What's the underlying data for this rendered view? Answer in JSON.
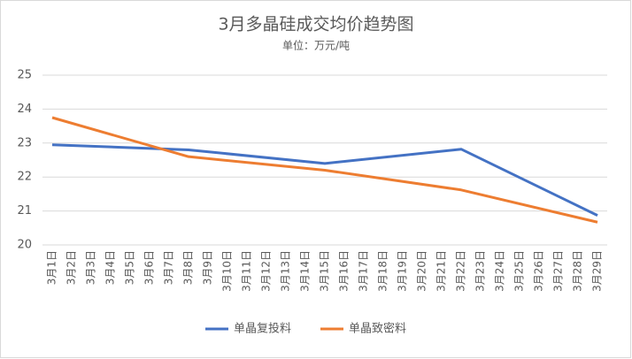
{
  "chart_data": {
    "type": "line",
    "title": "3月多晶硅成交均价趋势图",
    "subtitle": "单位：万元/吨",
    "categories": [
      "3月1日",
      "3月2日",
      "3月3日",
      "3月4日",
      "3月5日",
      "3月6日",
      "3月7日",
      "3月8日",
      "3月9日",
      "3月10日",
      "3月11日",
      "3月12日",
      "3月13日",
      "3月14日",
      "3月15日",
      "3月16日",
      "3月17日",
      "3月18日",
      "3月19日",
      "3月20日",
      "3月21日",
      "3月22日",
      "3月23日",
      "3月24日",
      "3月25日",
      "3月26日",
      "3月27日",
      "3月28日",
      "3月29日"
    ],
    "series": [
      {
        "name": "单晶复投料",
        "color": "#4472c4",
        "values": [
          22.95,
          null,
          null,
          null,
          null,
          null,
          null,
          22.8,
          null,
          null,
          null,
          null,
          null,
          null,
          22.4,
          null,
          null,
          null,
          null,
          null,
          null,
          22.82,
          null,
          null,
          null,
          null,
          null,
          null,
          20.87
        ]
      },
      {
        "name": "单晶致密料",
        "color": "#ed7d31",
        "values": [
          23.75,
          null,
          null,
          null,
          null,
          null,
          null,
          22.6,
          null,
          null,
          null,
          null,
          null,
          null,
          22.2,
          null,
          null,
          null,
          null,
          null,
          null,
          21.62,
          null,
          null,
          null,
          null,
          null,
          null,
          20.67
        ]
      }
    ],
    "span_gaps": true,
    "ylim": [
      20,
      25
    ],
    "yticks": [
      20,
      21,
      22,
      23,
      24,
      25
    ],
    "grid": true,
    "legend": "bottom"
  }
}
